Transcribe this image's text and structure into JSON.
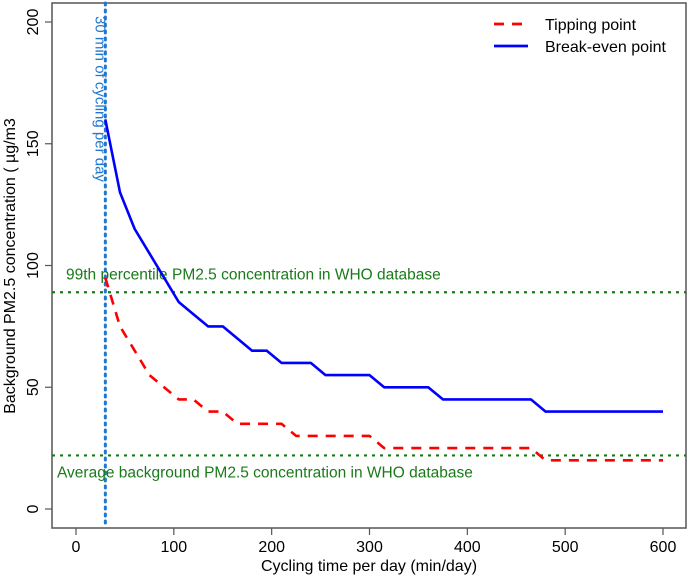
{
  "chart_data": {
    "type": "line",
    "title": "",
    "xlabel": "Cycling time per day (min/day)",
    "ylabel": "Background PM2.5 concentration ( µg/m3",
    "xlim": [
      -25,
      625
    ],
    "ylim": [
      -8,
      208
    ],
    "xticks": [
      0,
      100,
      200,
      300,
      400,
      500,
      600
    ],
    "yticks": [
      0,
      50,
      100,
      150,
      200
    ],
    "grid": false,
    "legend_position": "top-right",
    "series": [
      {
        "name": "Tipping point",
        "color": "#ff0000",
        "style": "dashed",
        "x": [
          30,
          45,
          60,
          75,
          90,
          105,
          120,
          135,
          150,
          165,
          180,
          195,
          210,
          225,
          240,
          255,
          270,
          285,
          300,
          315,
          330,
          345,
          360,
          375,
          390,
          405,
          420,
          435,
          450,
          465,
          480,
          495,
          510,
          525,
          540,
          555,
          570,
          585,
          600
        ],
        "values": [
          95,
          75,
          65,
          55,
          50,
          45,
          45,
          40,
          40,
          35,
          35,
          35,
          35,
          30,
          30,
          30,
          30,
          30,
          30,
          25,
          25,
          25,
          25,
          25,
          25,
          25,
          25,
          25,
          25,
          25,
          20,
          20,
          20,
          20,
          20,
          20,
          20,
          20,
          20
        ]
      },
      {
        "name": "Break-even point",
        "color": "#0000ff",
        "style": "solid",
        "x": [
          30,
          45,
          60,
          75,
          90,
          105,
          120,
          135,
          150,
          165,
          180,
          195,
          210,
          225,
          240,
          255,
          270,
          285,
          300,
          315,
          330,
          345,
          360,
          375,
          390,
          405,
          420,
          435,
          450,
          465,
          480,
          495,
          510,
          525,
          540,
          555,
          570,
          585,
          600
        ],
        "values": [
          160,
          130,
          115,
          105,
          95,
          85,
          80,
          75,
          75,
          70,
          65,
          65,
          60,
          60,
          60,
          55,
          55,
          55,
          55,
          50,
          50,
          50,
          50,
          45,
          45,
          45,
          45,
          45,
          45,
          45,
          40,
          40,
          40,
          40,
          40,
          40,
          40,
          40,
          40
        ]
      }
    ],
    "reference_lines": [
      {
        "orientation": "vertical",
        "value": 30,
        "color": "#1f77d0",
        "style": "dotted",
        "label": "30 min of cycling per day"
      },
      {
        "orientation": "horizontal",
        "value": 89,
        "color": "#1a7a1a",
        "style": "dotted",
        "label": "99th percentile PM2.5 concentration in WHO database"
      },
      {
        "orientation": "horizontal",
        "value": 22,
        "color": "#1a7a1a",
        "style": "dotted",
        "label": "Average background PM2.5 concentration in WHO database"
      }
    ]
  }
}
